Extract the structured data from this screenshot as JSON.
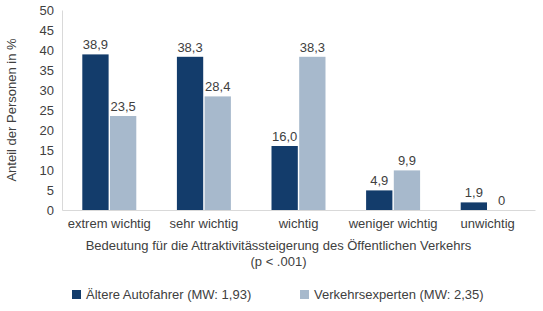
{
  "chart_data": {
    "type": "bar",
    "y_label": "Anteil der Personen in %",
    "x_label": "Bedeutung für die Attraktivitässteigerung des Öffentlichen Verkehrs",
    "annotations": [
      "(p < .001)"
    ],
    "categories": [
      "extrem wichtig",
      "sehr wichtig",
      "wichtig",
      "weniger wichtig",
      "unwichtig"
    ],
    "series": [
      {
        "name": "Ältere Autofahrer (MW: 1,93)",
        "color": "#133c6b",
        "values": [
          38.9,
          38.3,
          16.0,
          4.9,
          1.9
        ],
        "value_labels": [
          "38,9",
          "38,3",
          "16,0",
          "4,9",
          "1,9"
        ]
      },
      {
        "name": "Verkehrsexperten (MW: 2,35)",
        "color": "#a7b9cc",
        "values": [
          23.5,
          28.4,
          38.3,
          9.9,
          0
        ],
        "value_labels": [
          "23,5",
          "28,4",
          "38,3",
          "9,9",
          "0"
        ]
      }
    ],
    "ylim": [
      0,
      50
    ],
    "yticks": [
      0,
      5,
      10,
      15,
      20,
      25,
      30,
      35,
      40,
      45,
      50
    ],
    "grid": false,
    "legend": "bottom",
    "data_labels": true
  }
}
